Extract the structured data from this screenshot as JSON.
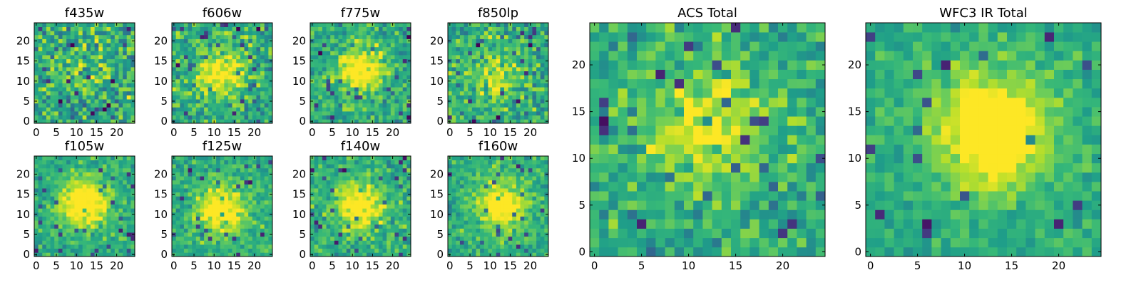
{
  "chart_data": [
    {
      "type": "heatmap",
      "title": "f435w",
      "xticks": [
        0,
        5,
        10,
        15,
        20
      ],
      "yticks": [
        0,
        5,
        10,
        15,
        20
      ],
      "xlim": [
        -0.5,
        24.5
      ],
      "ylim": [
        -0.5,
        24.5
      ],
      "grid_size": [
        25,
        25
      ],
      "colormap": "viridis",
      "peak_center": [
        12,
        13
      ],
      "peak_strength": 0.1,
      "noise_level": 0.55,
      "seed": 11
    },
    {
      "type": "heatmap",
      "title": "f606w",
      "xticks": [
        0,
        5,
        10,
        15,
        20
      ],
      "yticks": [
        0,
        5,
        10,
        15,
        20
      ],
      "xlim": [
        -0.5,
        24.5
      ],
      "ylim": [
        -0.5,
        24.5
      ],
      "grid_size": [
        25,
        25
      ],
      "colormap": "viridis",
      "peak_center": [
        12,
        12
      ],
      "peak_strength": 0.45,
      "noise_level": 0.45,
      "seed": 23
    },
    {
      "type": "heatmap",
      "title": "f775w",
      "xticks": [
        0,
        5,
        10,
        15,
        20
      ],
      "yticks": [
        0,
        5,
        10,
        15,
        20
      ],
      "xlim": [
        -0.5,
        24.5
      ],
      "ylim": [
        -0.5,
        24.5
      ],
      "grid_size": [
        25,
        25
      ],
      "colormap": "viridis",
      "peak_center": [
        12,
        13
      ],
      "peak_strength": 0.45,
      "noise_level": 0.4,
      "seed": 37
    },
    {
      "type": "heatmap",
      "title": "f850lp",
      "xticks": [
        0,
        5,
        10,
        15,
        20
      ],
      "yticks": [
        0,
        5,
        10,
        15,
        20
      ],
      "xlim": [
        -0.5,
        24.5
      ],
      "ylim": [
        -0.5,
        24.5
      ],
      "grid_size": [
        25,
        25
      ],
      "colormap": "viridis",
      "peak_center": [
        12,
        12
      ],
      "peak_strength": 0.3,
      "noise_level": 0.5,
      "seed": 41
    },
    {
      "type": "heatmap",
      "title": "f105w",
      "xticks": [
        0,
        5,
        10,
        15,
        20
      ],
      "yticks": [
        0,
        5,
        10,
        15,
        20
      ],
      "xlim": [
        -0.5,
        24.5
      ],
      "ylim": [
        -0.5,
        24.5
      ],
      "grid_size": [
        25,
        25
      ],
      "colormap": "viridis",
      "peak_center": [
        12,
        13
      ],
      "peak_strength": 0.55,
      "noise_level": 0.3,
      "seed": 53
    },
    {
      "type": "heatmap",
      "title": "f125w",
      "xticks": [
        0,
        5,
        10,
        15,
        20
      ],
      "yticks": [
        0,
        5,
        10,
        15,
        20
      ],
      "xlim": [
        -0.5,
        24.5
      ],
      "ylim": [
        -0.5,
        24.5
      ],
      "grid_size": [
        25,
        25
      ],
      "colormap": "viridis",
      "peak_center": [
        12,
        11
      ],
      "peak_strength": 0.5,
      "noise_level": 0.32,
      "seed": 67
    },
    {
      "type": "heatmap",
      "title": "f140w",
      "xticks": [
        0,
        5,
        10,
        15,
        20
      ],
      "yticks": [
        0,
        5,
        10,
        15,
        20
      ],
      "xlim": [
        -0.5,
        24.5
      ],
      "ylim": [
        -0.5,
        24.5
      ],
      "grid_size": [
        25,
        25
      ],
      "colormap": "viridis",
      "peak_center": [
        12,
        12
      ],
      "peak_strength": 0.5,
      "noise_level": 0.35,
      "seed": 71
    },
    {
      "type": "heatmap",
      "title": "f160w",
      "xticks": [
        0,
        5,
        10,
        15,
        20
      ],
      "yticks": [
        0,
        5,
        10,
        15,
        20
      ],
      "xlim": [
        -0.5,
        24.5
      ],
      "ylim": [
        -0.5,
        24.5
      ],
      "grid_size": [
        25,
        25
      ],
      "colormap": "viridis",
      "peak_center": [
        13,
        12
      ],
      "peak_strength": 0.5,
      "noise_level": 0.33,
      "seed": 83
    },
    {
      "type": "heatmap",
      "title": "ACS Total",
      "xticks": [
        0,
        5,
        10,
        15,
        20
      ],
      "yticks": [
        0,
        5,
        10,
        15,
        20
      ],
      "xlim": [
        -0.5,
        24.5
      ],
      "ylim": [
        -0.5,
        24.5
      ],
      "grid_size": [
        25,
        25
      ],
      "colormap": "viridis",
      "peak_center": [
        12,
        13
      ],
      "peak_strength": 0.4,
      "noise_level": 0.4,
      "seed": 97
    },
    {
      "type": "heatmap",
      "title": "WFC3 IR Total",
      "xticks": [
        0,
        5,
        10,
        15,
        20
      ],
      "yticks": [
        0,
        5,
        10,
        15,
        20
      ],
      "xlim": [
        -0.5,
        24.5
      ],
      "ylim": [
        -0.5,
        24.5
      ],
      "grid_size": [
        25,
        25
      ],
      "colormap": "viridis",
      "peak_center": [
        13,
        13
      ],
      "peak_strength": 0.6,
      "noise_level": 0.25,
      "seed": 101
    }
  ]
}
